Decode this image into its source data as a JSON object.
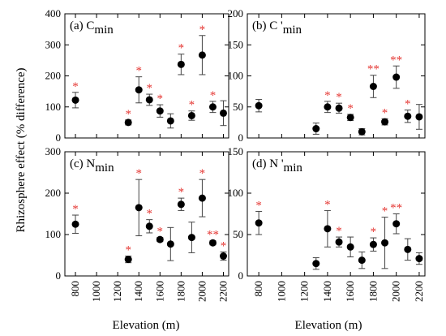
{
  "figure": {
    "ylabel": "Rhizosphere effect (% difference)",
    "xlabel": "Elevation (m)",
    "sig_color": "#e53935",
    "point_color": "#000000"
  },
  "chart_data": [
    {
      "type": "scatter",
      "panel": "(a)",
      "title_main": "C",
      "title_sub": "min",
      "title_prime": "",
      "xlim": [
        700,
        2250
      ],
      "xticks": [
        800,
        1000,
        1200,
        1400,
        1600,
        1800,
        2000,
        2200
      ],
      "ylim": [
        0,
        400
      ],
      "yticks": [
        0,
        100,
        200,
        300,
        400
      ],
      "points": [
        {
          "x": 800,
          "y": 122,
          "err": 25,
          "sig": "*"
        },
        {
          "x": 1300,
          "y": 50,
          "err": 8,
          "sig": "*"
        },
        {
          "x": 1400,
          "y": 155,
          "err": 42,
          "sig": "*"
        },
        {
          "x": 1500,
          "y": 123,
          "err": 18,
          "sig": "*"
        },
        {
          "x": 1600,
          "y": 87,
          "err": 20,
          "sig": "*"
        },
        {
          "x": 1700,
          "y": 55,
          "err": 23,
          "sig": ""
        },
        {
          "x": 1800,
          "y": 237,
          "err": 33,
          "sig": "*"
        },
        {
          "x": 1900,
          "y": 72,
          "err": 15,
          "sig": "*"
        },
        {
          "x": 2000,
          "y": 267,
          "err": 63,
          "sig": "*"
        },
        {
          "x": 2100,
          "y": 100,
          "err": 18,
          "sig": "*"
        },
        {
          "x": 2200,
          "y": 80,
          "err": 40,
          "sig": ""
        }
      ]
    },
    {
      "type": "scatter",
      "panel": "(b)",
      "title_main": "C",
      "title_sub": "min",
      "title_prime": "'",
      "xlim": [
        700,
        2250
      ],
      "xticks": [
        800,
        1000,
        1200,
        1400,
        1600,
        1800,
        2000,
        2200
      ],
      "ylim": [
        0,
        200
      ],
      "yticks": [
        0,
        50,
        100,
        150,
        200
      ],
      "points": [
        {
          "x": 800,
          "y": 52,
          "err": 10,
          "sig": ""
        },
        {
          "x": 1300,
          "y": 15,
          "err": 9,
          "sig": ""
        },
        {
          "x": 1400,
          "y": 50,
          "err": 9,
          "sig": "*"
        },
        {
          "x": 1500,
          "y": 48,
          "err": 8,
          "sig": "*"
        },
        {
          "x": 1600,
          "y": 33,
          "err": 5,
          "sig": "*"
        },
        {
          "x": 1700,
          "y": 10,
          "err": 5,
          "sig": ""
        },
        {
          "x": 1800,
          "y": 83,
          "err": 18,
          "sig": "**"
        },
        {
          "x": 1900,
          "y": 26,
          "err": 5,
          "sig": "*"
        },
        {
          "x": 2000,
          "y": 98,
          "err": 18,
          "sig": "**"
        },
        {
          "x": 2100,
          "y": 35,
          "err": 10,
          "sig": "*"
        },
        {
          "x": 2200,
          "y": 34,
          "err": 20,
          "sig": ""
        }
      ]
    },
    {
      "type": "scatter",
      "panel": "(c)",
      "title_main": "N",
      "title_sub": "min",
      "title_prime": "",
      "xlim": [
        700,
        2250
      ],
      "xticks": [
        800,
        1000,
        1200,
        1400,
        1600,
        1800,
        2000,
        2200
      ],
      "ylim": [
        0,
        300
      ],
      "yticks": [
        0,
        100,
        200,
        300
      ],
      "points": [
        {
          "x": 800,
          "y": 125,
          "err": 22,
          "sig": "*"
        },
        {
          "x": 1300,
          "y": 40,
          "err": 8,
          "sig": "*"
        },
        {
          "x": 1400,
          "y": 165,
          "err": 68,
          "sig": "*"
        },
        {
          "x": 1500,
          "y": 120,
          "err": 16,
          "sig": "*"
        },
        {
          "x": 1600,
          "y": 88,
          "err": 5,
          "sig": "*"
        },
        {
          "x": 1700,
          "y": 77,
          "err": 40,
          "sig": ""
        },
        {
          "x": 1800,
          "y": 173,
          "err": 15,
          "sig": "*"
        },
        {
          "x": 1900,
          "y": 93,
          "err": 37,
          "sig": ""
        },
        {
          "x": 2000,
          "y": 188,
          "err": 45,
          "sig": "*"
        },
        {
          "x": 2100,
          "y": 80,
          "err": 5,
          "sig": "**"
        },
        {
          "x": 2200,
          "y": 48,
          "err": 10,
          "sig": "*"
        }
      ]
    },
    {
      "type": "scatter",
      "panel": "(d)",
      "title_main": "N",
      "title_sub": "min",
      "title_prime": "'",
      "xlim": [
        700,
        2250
      ],
      "xticks": [
        800,
        1000,
        1200,
        1400,
        1600,
        1800,
        2000,
        2200
      ],
      "ylim": [
        0,
        150
      ],
      "yticks": [
        0,
        50,
        100,
        150
      ],
      "points": [
        {
          "x": 800,
          "y": 64,
          "err": 14,
          "sig": "*"
        },
        {
          "x": 1300,
          "y": 15,
          "err": 7,
          "sig": ""
        },
        {
          "x": 1400,
          "y": 57,
          "err": 22,
          "sig": "*"
        },
        {
          "x": 1500,
          "y": 41,
          "err": 6,
          "sig": "*"
        },
        {
          "x": 1600,
          "y": 35,
          "err": 12,
          "sig": ""
        },
        {
          "x": 1700,
          "y": 19,
          "err": 10,
          "sig": ""
        },
        {
          "x": 1800,
          "y": 38,
          "err": 8,
          "sig": "*"
        },
        {
          "x": 1900,
          "y": 40,
          "err": 31,
          "sig": "*"
        },
        {
          "x": 2000,
          "y": 63,
          "err": 12,
          "sig": "**"
        },
        {
          "x": 2100,
          "y": 32,
          "err": 13,
          "sig": ""
        },
        {
          "x": 2200,
          "y": 21,
          "err": 7,
          "sig": ""
        }
      ]
    }
  ]
}
